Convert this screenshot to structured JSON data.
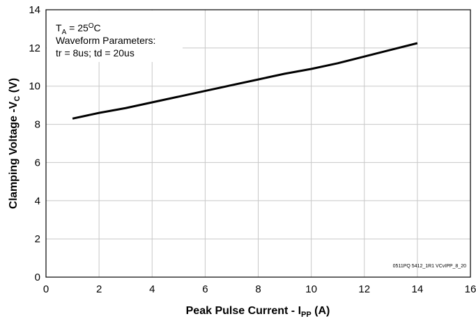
{
  "chart_data": {
    "type": "line",
    "x_label": [
      "Peak Pulse Current - I",
      "PP",
      " (A)"
    ],
    "y_label": [
      "Clamping Voltage -V",
      "C",
      " (V)"
    ],
    "annotation": {
      "line1": [
        "T",
        "A",
        " = 25",
        "O",
        "C"
      ],
      "line2": "Waveform Parameters:",
      "line3": "tr = 8us; td = 20us"
    },
    "footnote": "0511PQ 5412_1R1 VCvIPP_8_20",
    "x": [
      1,
      2,
      3,
      4,
      5,
      6,
      7,
      8,
      9,
      10,
      11,
      12,
      13,
      14
    ],
    "values": [
      8.3,
      8.6,
      8.85,
      9.15,
      9.45,
      9.75,
      10.05,
      10.35,
      10.65,
      10.9,
      11.2,
      11.55,
      11.9,
      12.25
    ],
    "color": "#000000",
    "xlim": [
      0,
      16
    ],
    "xticks": [
      0,
      2,
      4,
      6,
      8,
      10,
      12,
      14,
      16
    ],
    "ylim": [
      0,
      14
    ],
    "yticks": [
      0,
      2,
      4,
      6,
      8,
      10,
      12,
      14
    ],
    "grid": true
  }
}
